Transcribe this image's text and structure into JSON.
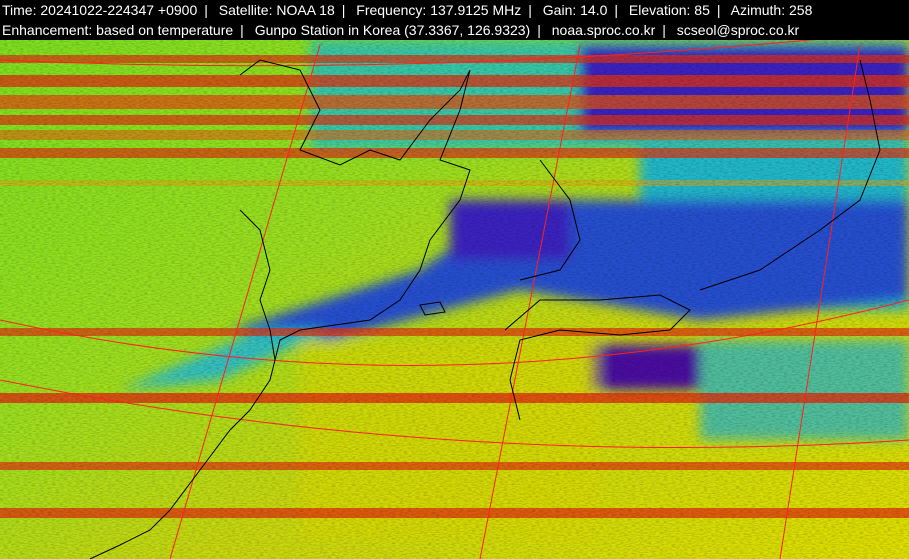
{
  "header": {
    "line1": [
      "Time: 20241022-224347 +0900",
      "Satellite: NOAA 18",
      "Frequency: 137.9125 MHz",
      "Gain: 14.0",
      "Elevation: 85",
      "Azimuth: 258"
    ],
    "line2": [
      "Enhancement: based on temperature",
      "Gunpo Station in Korea (37.3367, 126.9323)",
      "noaa.sproc.co.kr",
      "scseol@sproc.co.kr"
    ],
    "separator": "|"
  },
  "image": {
    "type": "NOAA APT satellite image, temperature-enhanced",
    "colors": {
      "warm": "#d8d800",
      "mild": "#7ee020",
      "cool": "#20c8c8",
      "cold": "#3030d0",
      "coldest": "#4a10a0",
      "noise": "#e03010",
      "grid": "#ff2020",
      "coastline": "#000000"
    }
  }
}
